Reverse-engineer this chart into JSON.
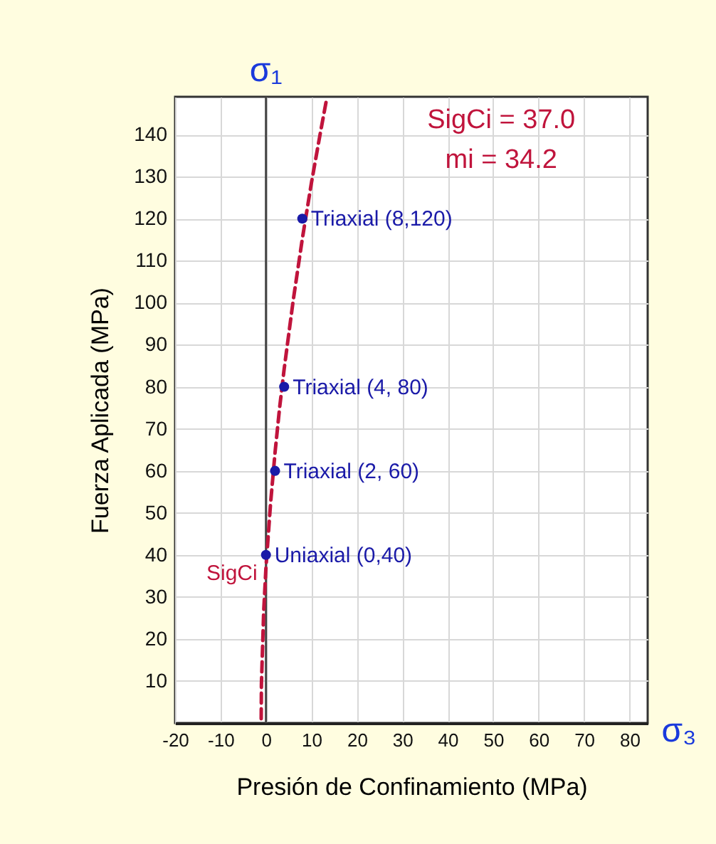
{
  "chart_data": {
    "type": "scatter",
    "xlabel": "Presión de Confinamiento (MPa)",
    "ylabel": "Fuerza Aplicada (MPa)",
    "xlim": [
      -20,
      84
    ],
    "ylim": [
      0,
      149
    ],
    "xticks": [
      -20,
      -10,
      0,
      10,
      20,
      30,
      40,
      50,
      60,
      70,
      80
    ],
    "yticks": [
      10,
      20,
      30,
      40,
      50,
      60,
      70,
      80,
      90,
      100,
      110,
      120,
      130,
      140
    ],
    "grid": true,
    "series": [
      {
        "type": "line",
        "color": "#c0143c",
        "line_style": "dashed",
        "marker": "none",
        "x": [
          -1.05,
          -1,
          -0.5,
          0,
          1,
          2,
          3,
          4,
          6,
          8,
          10,
          12,
          13.3
        ],
        "values": [
          1,
          9.2,
          26.6,
          37,
          52.1,
          64.4,
          75,
          84.2,
          100.6,
          115.2,
          128.5,
          140.6,
          148.2
        ]
      },
      {
        "type": "scatter",
        "color": "#1a1aa8",
        "marker": "circle",
        "x": [
          0,
          2,
          4,
          8
        ],
        "values": [
          40,
          60,
          80,
          120
        ]
      }
    ],
    "ref_lines": [
      {
        "axis": "x",
        "value": 0,
        "color": "#444444"
      }
    ],
    "annotations": [
      {
        "text": "SigCi",
        "x": 0,
        "y": 37
      },
      {
        "text": "Uniaxial (0,40)",
        "x": 0,
        "y": 40
      },
      {
        "text": "Triaxial (2, 60)",
        "x": 2,
        "y": 60
      },
      {
        "text": "Triaxial (4, 80)",
        "x": 4,
        "y": 80
      },
      {
        "text": "Triaxial (8,120)",
        "x": 8,
        "y": 120
      },
      "SigCi = 37.0",
      "mi = 34.2",
      "σ₁",
      "σ₃"
    ]
  }
}
